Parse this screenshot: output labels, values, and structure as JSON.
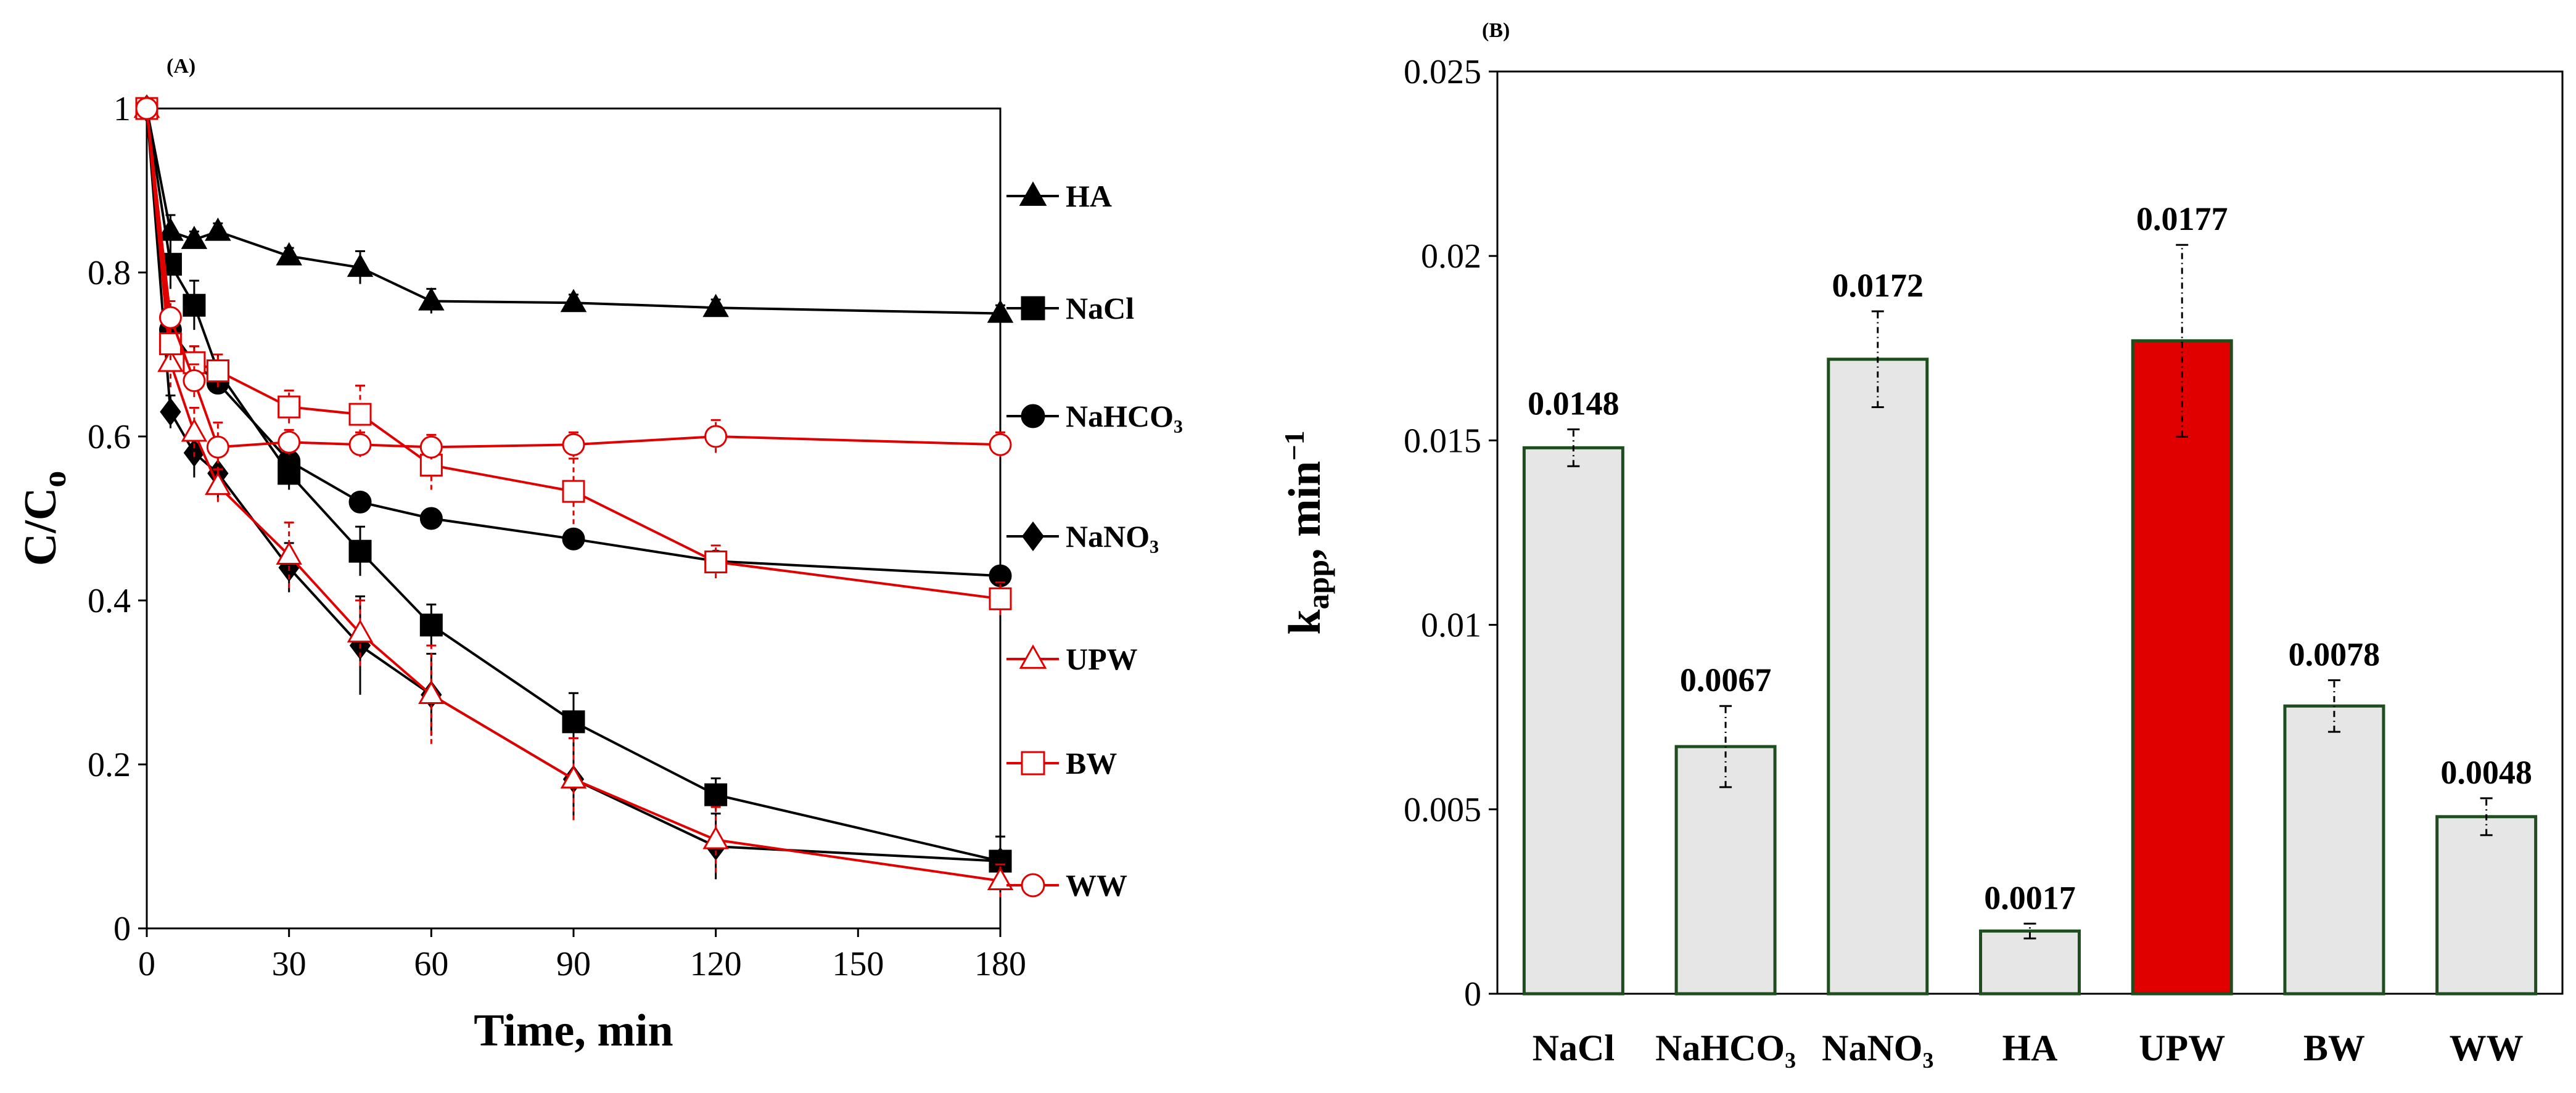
{
  "chart_data": [
    {
      "panel": "(A)",
      "type": "line",
      "xlabel": "Time, min",
      "ylabel_main": "C/C",
      "ylabel_sub": "o",
      "xlim": [
        0,
        180
      ],
      "ylim": [
        0,
        1
      ],
      "xticks": [
        0,
        30,
        60,
        90,
        120,
        150,
        180
      ],
      "yticks": [
        0,
        0.2,
        0.4,
        0.6,
        0.8,
        1
      ],
      "ytick_labels": [
        "0",
        "0.2",
        "0.4",
        "0.6",
        "0.8",
        "1"
      ],
      "legend_position": "right, outside plot area",
      "series": [
        {
          "name": "HA",
          "color": "#000000",
          "marker": "triangle",
          "filled": true,
          "x": [
            0,
            5,
            10,
            15,
            30,
            45,
            60,
            90,
            120,
            180
          ],
          "y": [
            1,
            0.85,
            0.84,
            0.85,
            0.82,
            0.806,
            0.765,
            0.763,
            0.757,
            0.75
          ],
          "err": [
            0,
            0.02,
            0.01,
            0.01,
            0.01,
            0.02,
            0.015,
            0.01,
            0.01,
            0.01
          ]
        },
        {
          "name": "NaCl",
          "color": "#000000",
          "marker": "square",
          "filled": true,
          "x": [
            0,
            5,
            10,
            15,
            30,
            45,
            60,
            90,
            120,
            180
          ],
          "y": [
            1,
            0.81,
            0.76,
            0.68,
            0.555,
            0.46,
            0.37,
            0.252,
            0.163,
            0.082
          ],
          "err": [
            0,
            0.03,
            0.03,
            0.02,
            0.02,
            0.03,
            0.025,
            0.035,
            0.02,
            0.03
          ]
        },
        {
          "name": "NaHCO₃",
          "color": "#000000",
          "marker": "circle",
          "filled": true,
          "x": [
            0,
            5,
            10,
            15,
            30,
            45,
            60,
            90,
            120,
            180
          ],
          "y": [
            1,
            0.73,
            0.69,
            0.665,
            0.57,
            0.52,
            0.5,
            0.475,
            0.448,
            0.43
          ],
          "err": [
            0,
            0.02,
            0.02,
            0.01,
            0.015,
            0.01,
            0.01,
            0.01,
            0.01,
            0.01
          ]
        },
        {
          "name": "NaNO₃",
          "color": "#000000",
          "marker": "diamond",
          "filled": true,
          "x": [
            0,
            5,
            10,
            15,
            30,
            45,
            60,
            90,
            120,
            180
          ],
          "y": [
            1,
            0.63,
            0.58,
            0.555,
            0.44,
            0.345,
            0.285,
            0.182,
            0.1,
            0.082
          ],
          "err": [
            0,
            0.02,
            0.03,
            0.03,
            0.03,
            0.06,
            0.05,
            0.05,
            0.04,
            0.03
          ]
        },
        {
          "name": "UPW",
          "color": "#e00000",
          "marker": "triangle",
          "filled": false,
          "x": [
            0,
            5,
            10,
            15,
            30,
            45,
            60,
            90,
            120,
            180
          ],
          "y": [
            1,
            0.69,
            0.605,
            0.54,
            0.455,
            0.36,
            0.285,
            0.182,
            0.108,
            0.058
          ],
          "err": [
            0,
            0.03,
            0.03,
            0.02,
            0.04,
            0.04,
            0.06,
            0.05,
            0.04,
            0.02
          ]
        },
        {
          "name": "BW",
          "color": "#e00000",
          "marker": "square",
          "filled": false,
          "x": [
            0,
            5,
            10,
            15,
            30,
            45,
            60,
            90,
            120,
            180
          ],
          "y": [
            1,
            0.713,
            0.69,
            0.68,
            0.636,
            0.627,
            0.565,
            0.533,
            0.447,
            0.402
          ],
          "err": [
            0,
            0.02,
            0.02,
            0.02,
            0.02,
            0.035,
            0.03,
            0.04,
            0.02,
            0.02
          ]
        },
        {
          "name": "WW",
          "color": "#e00000",
          "marker": "circle",
          "filled": false,
          "x": [
            0,
            5,
            10,
            15,
            30,
            45,
            60,
            90,
            120,
            180
          ],
          "y": [
            1,
            0.745,
            0.668,
            0.587,
            0.593,
            0.59,
            0.587,
            0.59,
            0.6,
            0.59
          ],
          "err": [
            0,
            0.02,
            0.02,
            0.03,
            0.015,
            0.015,
            0.015,
            0.015,
            0.02,
            0.015
          ]
        }
      ]
    },
    {
      "panel": "(B)",
      "type": "bar",
      "ylabel_main": "k",
      "ylabel_sub": "app",
      "ylabel_unit": ", min",
      "ylabel_sup": "−1",
      "ylim": [
        0,
        0.025
      ],
      "yticks": [
        0,
        0.005,
        0.01,
        0.015,
        0.02,
        0.025
      ],
      "ytick_labels": [
        "0",
        "0.005",
        "0.01",
        "0.015",
        "0.02",
        "0.025"
      ],
      "categories": [
        "NaCl",
        "NaHCO₃",
        "NaNO₃",
        "HA",
        "UPW",
        "BW",
        "WW"
      ],
      "values": [
        0.0148,
        0.0067,
        0.0172,
        0.0017,
        0.0177,
        0.0078,
        0.0048
      ],
      "value_labels": [
        "0.0148",
        "0.0067",
        "0.0172",
        "0.0017",
        "0.0177",
        "0.0078",
        "0.0048"
      ],
      "errors": [
        0.0005,
        0.0011,
        0.0013,
        0.0002,
        0.0026,
        0.0007,
        0.0005
      ],
      "bar_fill": "#e6e6e6",
      "highlight_fill": "#e00000",
      "highlight_category": "UPW",
      "bar_edge": "#1e4d1e"
    }
  ]
}
